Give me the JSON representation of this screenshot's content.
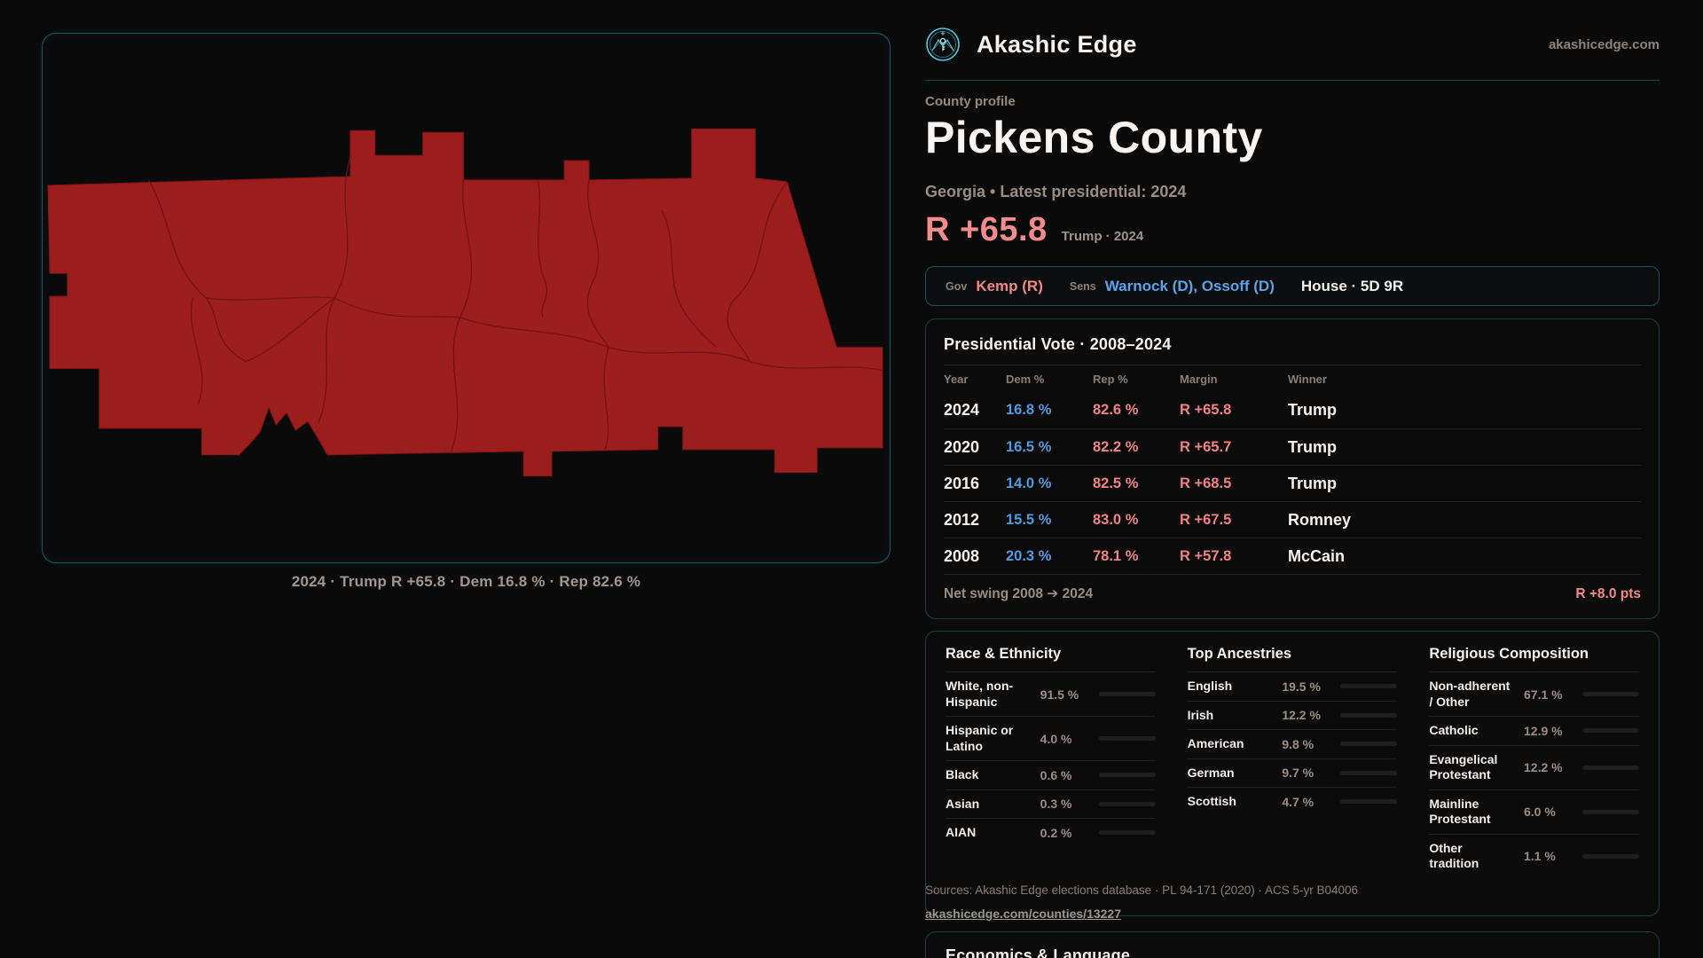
{
  "brand": {
    "name": "Akashic Edge",
    "domain": "akashicedge.com",
    "logo_icon": "akashic-emblem-icon"
  },
  "map": {
    "caption": "2024 · Trump R +65.8 · Dem 16.8 % · Rep 82.6 %",
    "fill_color": "#9c1d1e",
    "line_color": "#701114"
  },
  "profile": {
    "eyebrow": "County profile",
    "title": "Pickens County",
    "subtitle": "Georgia • Latest presidential: 2024",
    "margin_headline": "R +65.8",
    "margin_context": "Trump · 2024"
  },
  "officials": {
    "gov_label": "Gov",
    "gov_value": "Kemp (R)",
    "sens_label": "Sens",
    "sens_value": "Warnock (D), Ossoff (D)",
    "house_value": "House · 5D 9R"
  },
  "presidential": {
    "title": "Presidential Vote · 2008–2024",
    "columns": [
      "Year",
      "Dem %",
      "Rep %",
      "Margin",
      "Winner"
    ],
    "rows": [
      {
        "year": "2024",
        "dem": "16.8 %",
        "rep": "82.6 %",
        "margin": "R +65.8",
        "winner": "Trump"
      },
      {
        "year": "2020",
        "dem": "16.5 %",
        "rep": "82.2 %",
        "margin": "R +65.7",
        "winner": "Trump"
      },
      {
        "year": "2016",
        "dem": "14.0 %",
        "rep": "82.5 %",
        "margin": "R +68.5",
        "winner": "Trump"
      },
      {
        "year": "2012",
        "dem": "15.5 %",
        "rep": "83.0 %",
        "margin": "R +67.5",
        "winner": "Romney"
      },
      {
        "year": "2008",
        "dem": "20.3 %",
        "rep": "78.1 %",
        "margin": "R +57.8",
        "winner": "McCain"
      }
    ],
    "net_swing_label": "Net swing 2008 ➔ 2024",
    "net_swing_value": "R +8.0 pts"
  },
  "chart_data": [
    {
      "type": "bar",
      "title": "Race & Ethnicity",
      "categories": [
        "White, non-Hispanic",
        "Hispanic or Latino",
        "Black",
        "Asian",
        "AIAN"
      ],
      "values": [
        91.5,
        4.0,
        0.6,
        0.3,
        0.2
      ]
    },
    {
      "type": "bar",
      "title": "Top Ancestries",
      "categories": [
        "English",
        "Irish",
        "American",
        "German",
        "Scottish"
      ],
      "values": [
        19.5,
        12.2,
        9.8,
        9.7,
        4.7
      ]
    },
    {
      "type": "bar",
      "title": "Religious Composition",
      "categories": [
        "Non-adherent / Other",
        "Catholic",
        "Evangelical Protestant",
        "Mainline Protestant",
        "Other tradition"
      ],
      "values": [
        67.1,
        12.9,
        12.2,
        6.0,
        1.1
      ]
    }
  ],
  "demographics": {
    "race": {
      "title": "Race & Ethnicity",
      "rows": [
        {
          "label": "White, non-Hispanic",
          "value": "91.5 %",
          "pct": 91.5,
          "color": "#9fb2c9"
        },
        {
          "label": "Hispanic or Latino",
          "value": "4.0 %",
          "pct": 4.0,
          "color": "#dfa02f"
        },
        {
          "label": "Black",
          "value": "0.6 %",
          "pct": 0.6,
          "color": "#9fb2c9"
        },
        {
          "label": "Asian",
          "value": "0.3 %",
          "pct": 0.3,
          "color": "#9fb2c9"
        },
        {
          "label": "AIAN",
          "value": "0.2 %",
          "pct": 0.2,
          "color": "#9fb2c9"
        }
      ]
    },
    "ancestries": {
      "title": "Top Ancestries",
      "rows": [
        {
          "label": "English",
          "value": "19.5 %",
          "pct": 19.5,
          "color": "#9fb2c9"
        },
        {
          "label": "Irish",
          "value": "12.2 %",
          "pct": 12.2,
          "color": "#9fb2c9"
        },
        {
          "label": "American",
          "value": "9.8 %",
          "pct": 9.8,
          "color": "#9fb2c9"
        },
        {
          "label": "German",
          "value": "9.7 %",
          "pct": 9.7,
          "color": "#9fb2c9"
        },
        {
          "label": "Scottish",
          "value": "4.7 %",
          "pct": 4.7,
          "color": "#9fb2c9"
        }
      ]
    },
    "religion": {
      "title": "Religious Composition",
      "rows": [
        {
          "label": "Non-adherent / Other",
          "value": "67.1 %",
          "pct": 67.1,
          "color": "#7e8aa2"
        },
        {
          "label": "Catholic",
          "value": "12.9 %",
          "pct": 12.9,
          "color": "#e2ab31"
        },
        {
          "label": "Evangelical Protestant",
          "value": "12.2 %",
          "pct": 12.2,
          "color": "#e57f7f"
        },
        {
          "label": "Mainline Protestant",
          "value": "6.0 %",
          "pct": 6.0,
          "color": "#4d88da"
        },
        {
          "label": "Other tradition",
          "value": "1.1 %",
          "pct": 1.1,
          "color": "#d5d5d5"
        }
      ]
    }
  },
  "sources": {
    "line": "Sources: Akashic Edge elections database · PL 94-171 (2020) · ACS 5-yr B04006",
    "link": "akashicedge.com/counties/13227"
  },
  "economics": {
    "title": "Economics & Language"
  }
}
